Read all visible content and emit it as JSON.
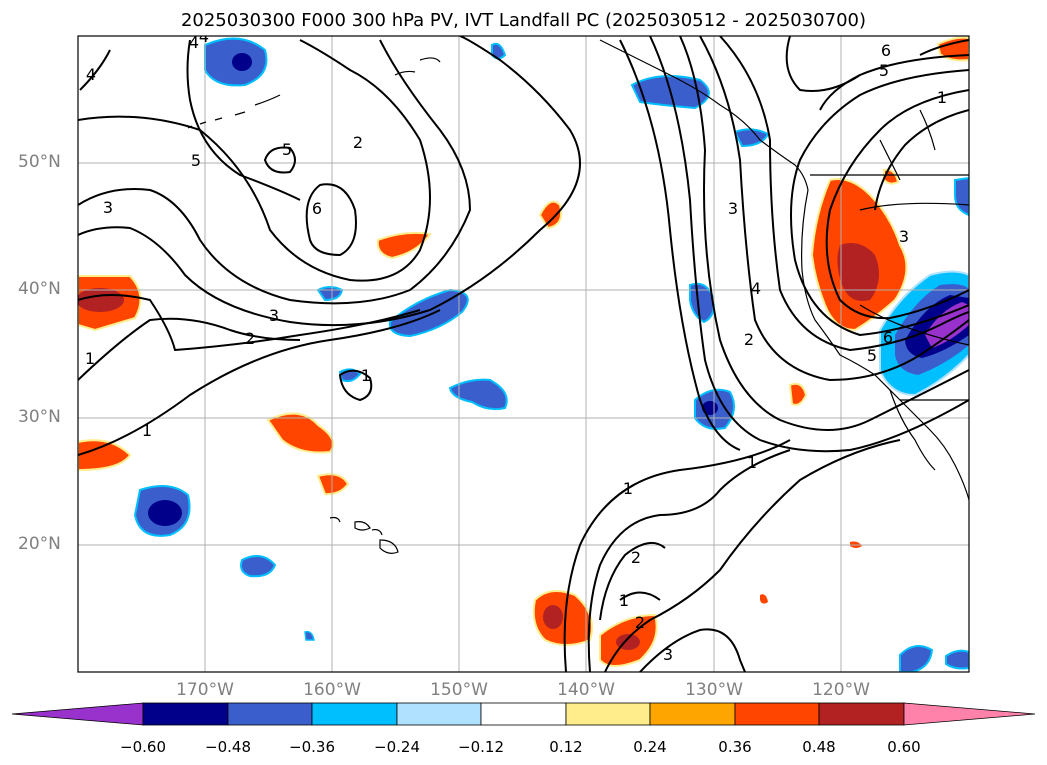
{
  "title": "2025030300 F000 300 hPa PV, IVT Landfall PC (2025030512 - 2025030700)",
  "map": {
    "lat_labels": [
      "50°N",
      "40°N",
      "30°N",
      "20°N"
    ],
    "lon_labels": [
      "170°W",
      "160°W",
      "150°W",
      "140°W",
      "130°W",
      "120°W"
    ],
    "contour_labels": [
      "4",
      "4",
      "5",
      "5",
      "6",
      "3",
      "3",
      "2",
      "1",
      "1",
      "1",
      "2",
      "6",
      "5",
      "1",
      "3",
      "4",
      "2",
      "5",
      "6",
      "3",
      "1",
      "1",
      "2",
      "1",
      "3",
      "2",
      "4"
    ]
  },
  "colorbar": {
    "tick_labels": [
      "−0.60",
      "−0.48",
      "−0.36",
      "−0.24",
      "−0.12",
      "0.12",
      "0.24",
      "0.36",
      "0.48",
      "0.60"
    ],
    "colors": [
      "#9932cc",
      "#00008b",
      "#3a5fcd",
      "#00bfff",
      "#b0e2ff",
      "#ffffff",
      "#ffec8b",
      "#ffa500",
      "#ff4500",
      "#b22222",
      "#ff82ab"
    ]
  }
}
